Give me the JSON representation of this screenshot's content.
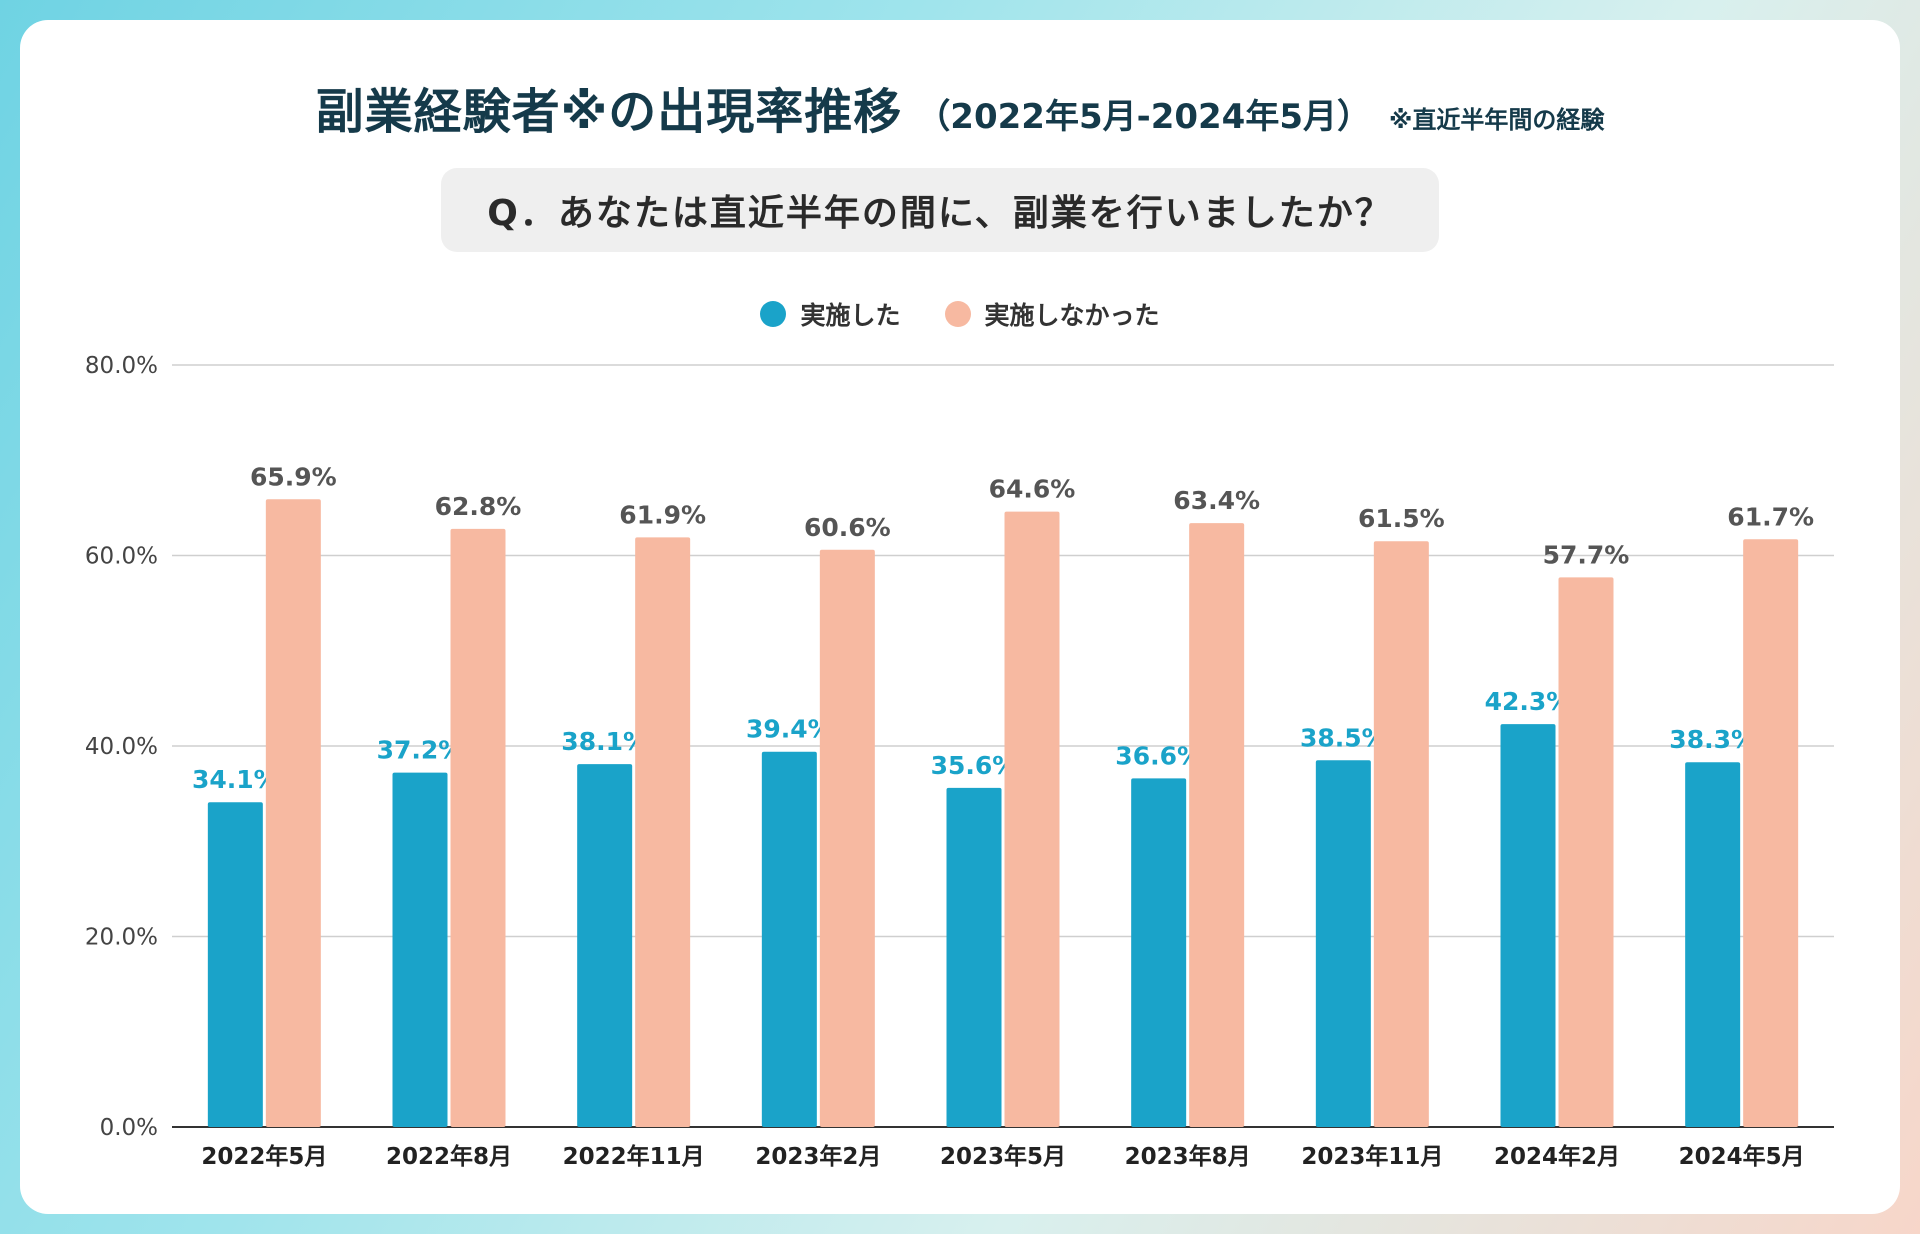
{
  "header": {
    "title": "副業経験者※の出現率推移",
    "period": "（2022年5月-2024年5月）",
    "note": "※直近半年間の経験"
  },
  "question": "Q．あなたは直近半年の間に、副業を行いましたか？",
  "colors": {
    "did": "#1aa3c9",
    "did_not": "#f7b9a1",
    "did_label": "#1aa3c9",
    "did_not_label": "#555555"
  },
  "chart_data": {
    "type": "bar",
    "categories": [
      "2022年5月",
      "2022年8月",
      "2022年11月",
      "2023年2月",
      "2023年5月",
      "2023年8月",
      "2023年11月",
      "2024年2月",
      "2024年5月"
    ],
    "series": [
      {
        "name": "実施した",
        "values": [
          34.1,
          37.2,
          38.1,
          39.4,
          35.6,
          36.6,
          38.5,
          42.3,
          38.3
        ]
      },
      {
        "name": "実施しなかった",
        "values": [
          65.9,
          62.8,
          61.9,
          60.6,
          64.6,
          63.4,
          61.5,
          57.7,
          61.7
        ]
      }
    ],
    "ylim": [
      0,
      80
    ],
    "yticks": [
      "0.0%",
      "20.0%",
      "40.0%",
      "60.0%",
      "80.0%"
    ],
    "data_labels": {
      "実施した": [
        "34.1%",
        "37.2%",
        "38.1%",
        "39.4%",
        "35.6%",
        "36.6%",
        "38.5%",
        "42.3%",
        "38.3%"
      ],
      "実施しなかった": [
        "65.9%",
        "62.8%",
        "61.9%",
        "60.6%",
        "64.6%",
        "63.4%",
        "61.5%",
        "57.7%",
        "61.7%"
      ]
    },
    "grid": true,
    "legend": "top-center"
  }
}
